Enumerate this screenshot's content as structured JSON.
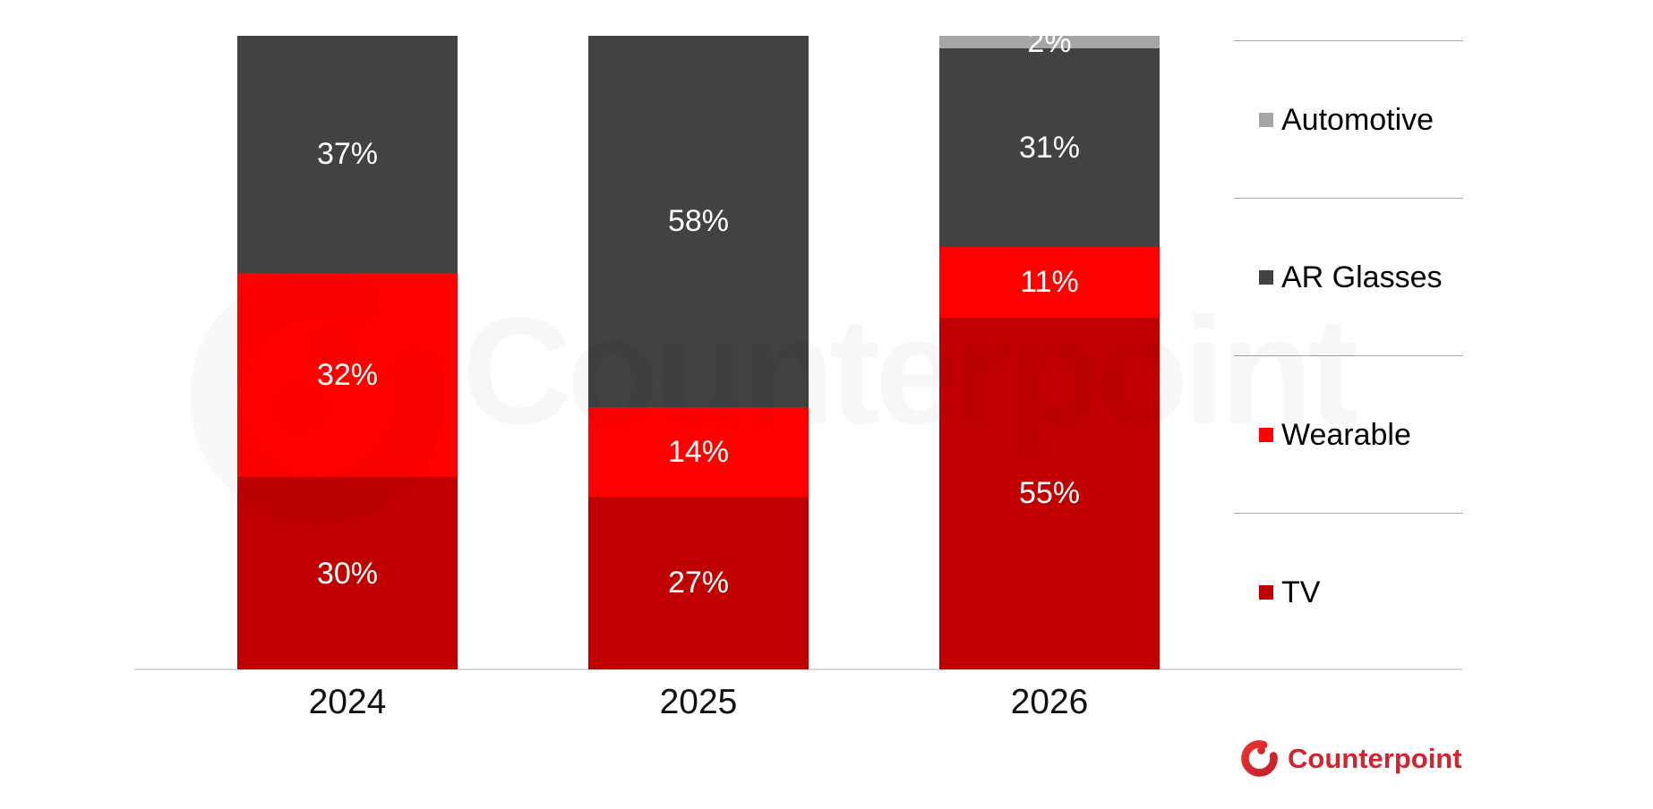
{
  "chart_data": {
    "type": "bar",
    "stacked": true,
    "unit": "%",
    "title": "",
    "xlabel": "",
    "ylabel": "",
    "ylim": [
      0,
      100
    ],
    "gridlines": false,
    "legend_position": "right",
    "categories": [
      "2024",
      "2025",
      "2026"
    ],
    "series": [
      {
        "name": "TV",
        "color": "#c00000",
        "values": [
          30,
          27,
          55
        ]
      },
      {
        "name": "Wearable",
        "color": "#ff0000",
        "values": [
          32,
          14,
          11
        ]
      },
      {
        "name": "AR Glasses",
        "color": "#424242",
        "values": [
          37,
          58,
          31
        ]
      },
      {
        "name": "Automotive",
        "color": "#a6a6a6",
        "values": [
          0,
          0,
          2
        ]
      }
    ],
    "data_labels": {
      "2024": [
        "37%",
        "32%",
        "30%"
      ],
      "2025": [
        "58%",
        "14%",
        "27%"
      ],
      "2026": [
        "2%",
        "31%",
        "11%",
        "55%"
      ]
    }
  },
  "legend": {
    "items": [
      {
        "label": "Automotive",
        "color": "#a6a6a6"
      },
      {
        "label": "AR Glasses",
        "color": "#424242"
      },
      {
        "label": "Wearable",
        "color": "#ff0000"
      },
      {
        "label": "TV",
        "color": "#c00000"
      }
    ]
  },
  "watermark": {
    "text": "Counterpoint"
  },
  "brand": {
    "name": "Counterpoint",
    "color": "#d0252e"
  },
  "colors": {
    "axis_line": "#d9d9d9",
    "legend_divider": "#a6a6a6",
    "data_label_text": "#ffffff",
    "category_label_text": "#111111"
  }
}
